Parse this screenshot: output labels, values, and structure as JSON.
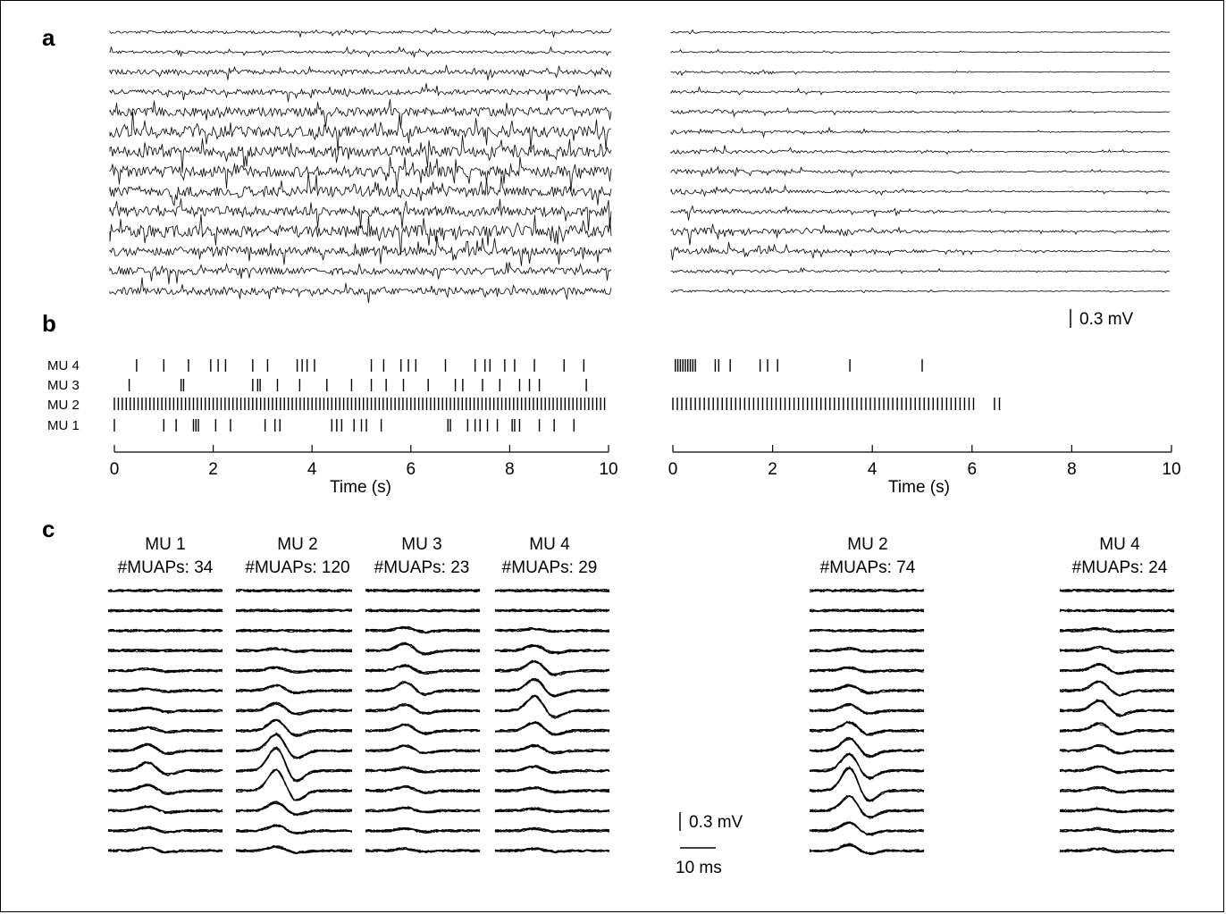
{
  "panels": {
    "a": {
      "letter": "a",
      "channels": 14,
      "scalebar_label": "0.3 mV"
    },
    "b": {
      "letter": "b",
      "rows": [
        {
          "label": "MU 4",
          "spikes_left": [
            0.45,
            1.0,
            1.5,
            1.95,
            2.1,
            2.25,
            2.8,
            3.1,
            3.7,
            3.8,
            3.9,
            4.05,
            5.2,
            5.45,
            5.8,
            5.95,
            6.1,
            6.7,
            7.3,
            7.5,
            7.6,
            7.9,
            8.1,
            8.5,
            9.1,
            9.5
          ],
          "spikes_right": [
            0.05,
            0.1,
            0.15,
            0.2,
            0.25,
            0.3,
            0.35,
            0.4,
            0.45,
            0.85,
            0.92,
            1.15,
            1.75,
            1.9,
            2.1,
            3.55,
            5.0
          ]
        },
        {
          "label": "MU 3",
          "spikes_left": [
            0.3,
            1.35,
            1.4,
            2.8,
            2.9,
            2.95,
            3.3,
            3.75,
            4.3,
            4.8,
            5.2,
            5.5,
            5.85,
            6.35,
            6.9,
            7.05,
            7.45,
            7.8,
            8.2,
            8.4,
            8.6,
            9.55
          ],
          "spikes_right": []
        },
        {
          "label": "MU 2",
          "density_left": [
            0.0,
            9.95,
            0.08
          ],
          "spikes_right_range": [
            0.0,
            6.05,
            0.09
          ],
          "spikes_right_extra": [
            6.45,
            6.55
          ]
        },
        {
          "label": "MU 1",
          "spikes_left": [
            0.0,
            1.0,
            1.25,
            1.6,
            1.65,
            1.7,
            2.05,
            2.35,
            3.05,
            3.25,
            3.35,
            4.4,
            4.5,
            4.6,
            4.85,
            5.0,
            5.1,
            5.4,
            6.75,
            6.8,
            7.15,
            7.3,
            7.4,
            7.55,
            7.75,
            8.05,
            8.1,
            8.2,
            8.6,
            8.9,
            9.3
          ]
        }
      ],
      "axis": {
        "ticks": [
          "0",
          "2",
          "4",
          "6",
          "8",
          "10"
        ],
        "xlabel": "Time (s)"
      }
    },
    "c": {
      "letter": "c",
      "groups": [
        {
          "name": "MU 1",
          "count": "#MUAPs: 34"
        },
        {
          "name": "MU 2",
          "count": "#MUAPs: 120"
        },
        {
          "name": "MU 3",
          "count": "#MUAPs: 23"
        },
        {
          "name": "MU 4",
          "count": "#MUAPs: 29"
        },
        {
          "name": "MU 2",
          "count": "#MUAPs: 74"
        },
        {
          "name": "MU 4",
          "count": "#MUAPs: 24"
        }
      ],
      "scalebar_v_label": "0.3 mV",
      "scalebar_h_label": "10 ms"
    }
  },
  "style": {
    "ink": "#000000",
    "background": "#ffffff"
  }
}
